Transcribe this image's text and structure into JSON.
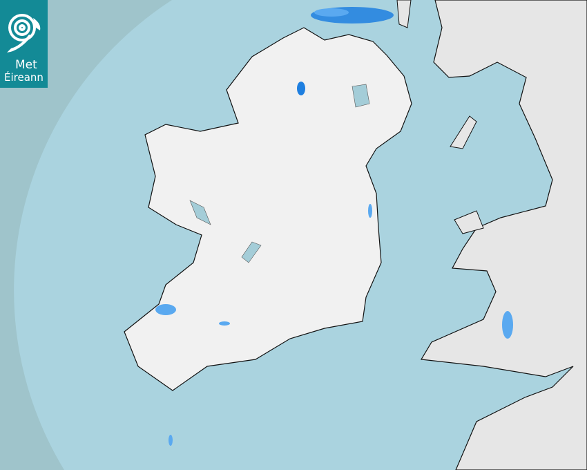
{
  "logo": {
    "line1": "Met",
    "line2": "Éireann",
    "icon": "spiral-swirl-icon"
  },
  "colors": {
    "sea_outside_coverage": "#9fc4cb",
    "sea_inside_coverage": "#aad3df",
    "land": "#f1f1f1",
    "rain_light": "#5aa9f0",
    "rain_moderate": "#1e7fe0",
    "logo_bg": "#138a96"
  }
}
